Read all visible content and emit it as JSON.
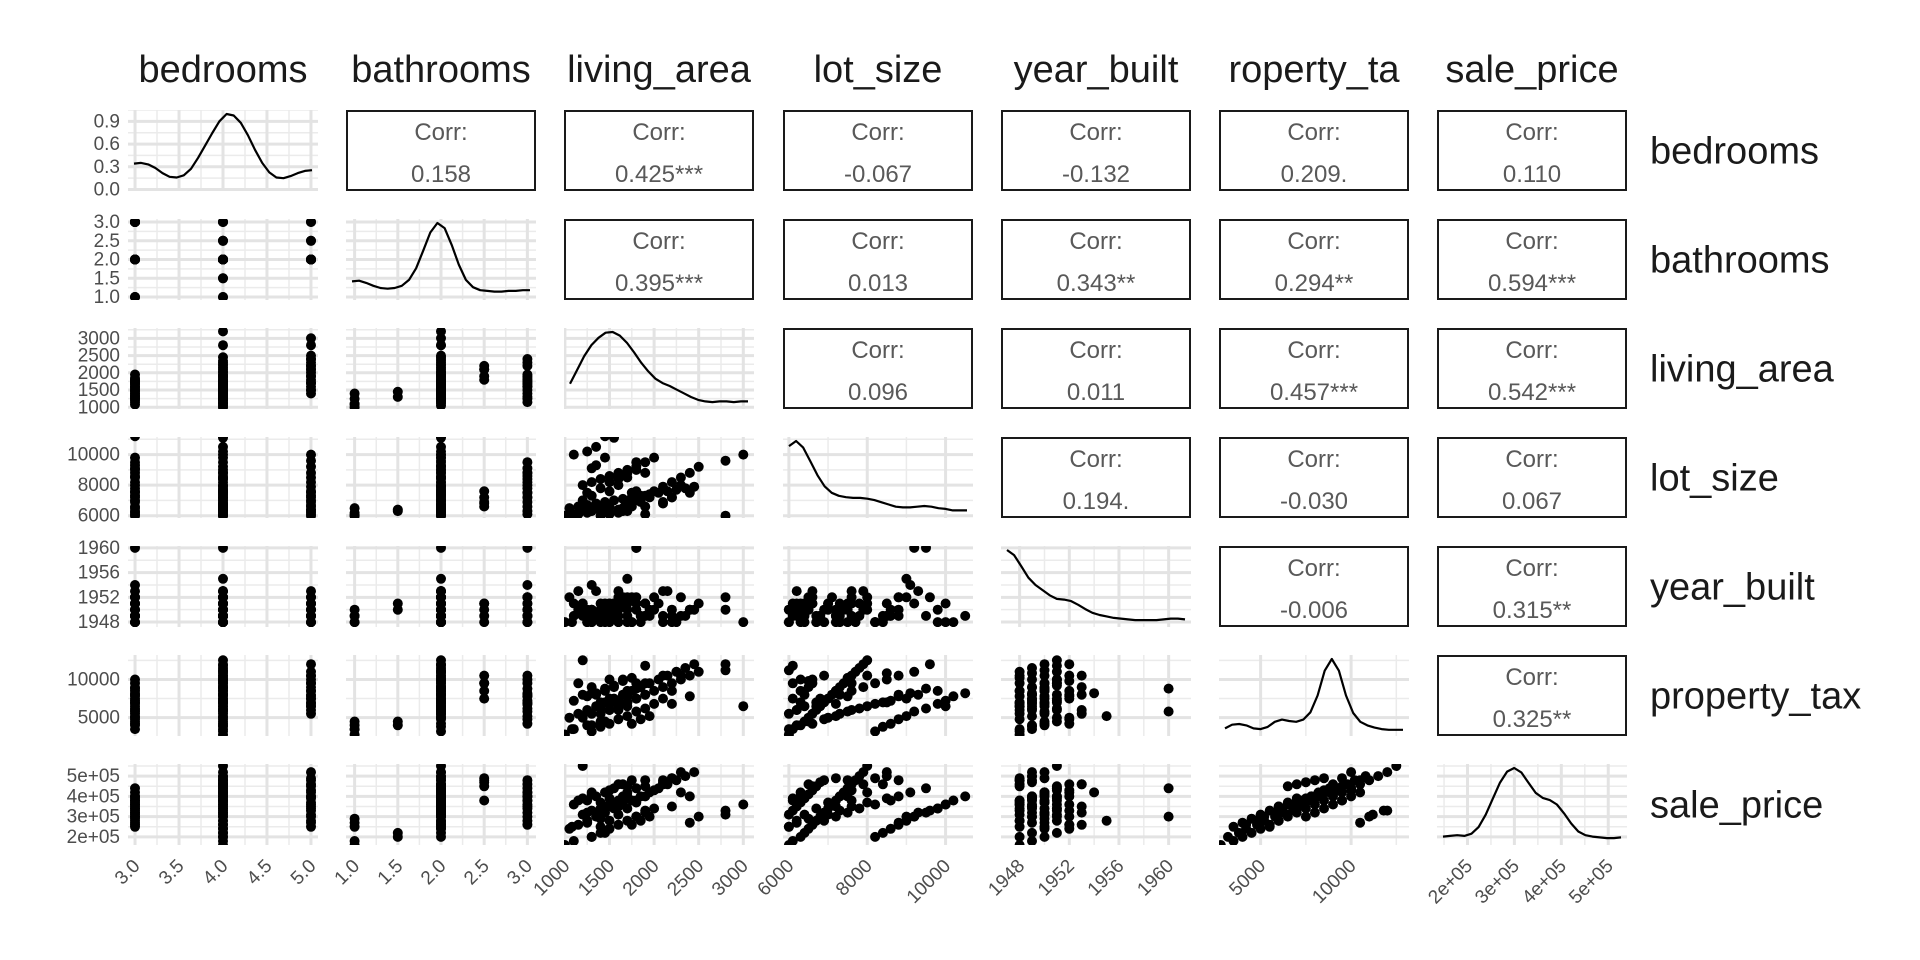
{
  "chart_data": {
    "type": "scatter-matrix",
    "variables": [
      "bedrooms",
      "bathrooms",
      "living_area",
      "lot_size",
      "year_built",
      "property_tax",
      "sale_price"
    ],
    "column_strip_labels": [
      "bedrooms",
      "bathrooms",
      "living_area",
      "lot_size",
      "year_built",
      "roperty_ta",
      "sale_price"
    ],
    "row_strip_labels": [
      "bedrooms",
      "bathrooms",
      "living_area",
      "lot_size",
      "year_built",
      "property_tax",
      "sale_price"
    ],
    "corr_label": "Corr:",
    "correlations": [
      [
        "",
        "0.158",
        "0.425***",
        "-0.067",
        "-0.132",
        "0.209.",
        "0.110"
      ],
      [
        "",
        "",
        "0.395***",
        "0.013",
        "0.343**",
        "0.294**",
        "0.594***"
      ],
      [
        "",
        "",
        "",
        "0.096",
        "0.011",
        "0.457***",
        "0.542***"
      ],
      [
        "",
        "",
        "",
        "",
        "0.194.",
        "-0.030",
        "0.067"
      ],
      [
        "",
        "",
        "",
        "",
        "",
        "-0.006",
        "0.315**"
      ],
      [
        "",
        "",
        "",
        "",
        "",
        "",
        "0.325**"
      ]
    ],
    "x_axes": [
      {
        "range": [
          2.92,
          5.08
        ],
        "ticks": [
          3.0,
          3.5,
          4.0,
          4.5,
          5.0
        ],
        "labels": [
          "3.0",
          "3.5",
          "4.0",
          "4.5",
          "5.0"
        ]
      },
      {
        "range": [
          0.9,
          3.1
        ],
        "ticks": [
          1.0,
          1.5,
          2.0,
          2.5,
          3.0
        ],
        "labels": [
          "1.0",
          "1.5",
          "2.0",
          "2.5",
          "3.0"
        ]
      },
      {
        "range": [
          990,
          3120
        ],
        "ticks": [
          1000,
          1500,
          2000,
          2500,
          3000
        ],
        "labels": [
          "1000",
          "1500",
          "2000",
          "2500",
          "3000"
        ]
      },
      {
        "range": [
          5850,
          10700
        ],
        "ticks": [
          6000,
          8000,
          10000
        ],
        "labels": [
          "6000",
          "8000",
          "10000"
        ]
      },
      {
        "range": [
          1946.5,
          1961.8
        ],
        "ticks": [
          1948,
          1952,
          1956,
          1960
        ],
        "labels": [
          "1948",
          "1952",
          "1956",
          "1960"
        ]
      },
      {
        "range": [
          2700,
          13200
        ],
        "ticks": [
          5000,
          10000
        ],
        "labels": [
          "5000",
          "10000"
        ]
      },
      {
        "range": [
          135000,
          540000
        ],
        "ticks": [
          200000,
          300000,
          400000,
          500000
        ],
        "labels": [
          "2e+05",
          "3e+05",
          "4e+05",
          "5e+05"
        ]
      }
    ],
    "y_axes": [
      {
        "range": [
          -0.02,
          1.05
        ],
        "ticks": [
          0.0,
          0.3,
          0.6,
          0.9
        ],
        "labels": [
          "0.0",
          "0.3",
          "0.6",
          "0.9"
        ]
      },
      {
        "range": [
          0.92,
          3.08
        ],
        "ticks": [
          1.0,
          1.5,
          2.0,
          2.5,
          3.0
        ],
        "labels": [
          "1.0",
          "1.5",
          "2.0",
          "2.5",
          "3.0"
        ]
      },
      {
        "range": [
          950,
          3300
        ],
        "ticks": [
          1000,
          1500,
          2000,
          2500,
          3000
        ],
        "labels": [
          "1000",
          "1500",
          "2000",
          "2500",
          "3000"
        ]
      },
      {
        "range": [
          5850,
          11150
        ],
        "ticks": [
          6000,
          8000,
          10000
        ],
        "labels": [
          "6000",
          "8000",
          "10000"
        ]
      },
      {
        "range": [
          1947.2,
          1960.3
        ],
        "ticks": [
          1948,
          1952,
          1956,
          1960
        ],
        "labels": [
          "1948",
          "1952",
          "1956",
          "1960"
        ]
      },
      {
        "range": [
          2600,
          13200
        ],
        "ticks": [
          5000,
          10000
        ],
        "labels": [
          "5000",
          "10000"
        ]
      },
      {
        "range": [
          160000,
          560000
        ],
        "ticks": [
          200000,
          300000,
          400000,
          500000
        ],
        "labels": [
          "2e+05",
          "3e+05",
          "4e+05",
          "5e+05"
        ]
      }
    ],
    "densities": [
      [
        0.32,
        0.33,
        0.31,
        0.26,
        0.19,
        0.14,
        0.13,
        0.16,
        0.25,
        0.4,
        0.57,
        0.74,
        0.9,
        1.0,
        0.98,
        0.88,
        0.71,
        0.51,
        0.33,
        0.2,
        0.13,
        0.12,
        0.15,
        0.19,
        0.22,
        0.23
      ],
      [
        0.2,
        0.21,
        0.18,
        0.14,
        0.11,
        0.1,
        0.11,
        0.14,
        0.22,
        0.38,
        0.62,
        0.87,
        1.0,
        0.93,
        0.7,
        0.43,
        0.22,
        0.12,
        0.08,
        0.07,
        0.06,
        0.06,
        0.07,
        0.07,
        0.08,
        0.08
      ],
      [
        0.29,
        0.48,
        0.67,
        0.82,
        0.92,
        0.99,
        1.0,
        0.95,
        0.85,
        0.72,
        0.58,
        0.46,
        0.36,
        0.3,
        0.26,
        0.21,
        0.16,
        0.11,
        0.07,
        0.05,
        0.04,
        0.05,
        0.05,
        0.04,
        0.05,
        0.05
      ],
      [
        0.93,
        1.0,
        0.91,
        0.72,
        0.53,
        0.38,
        0.29,
        0.25,
        0.23,
        0.22,
        0.22,
        0.21,
        0.19,
        0.16,
        0.13,
        0.1,
        0.09,
        0.09,
        0.1,
        0.11,
        0.1,
        0.08,
        0.07,
        0.05,
        0.05,
        0.05
      ],
      [
        1.0,
        0.93,
        0.78,
        0.62,
        0.52,
        0.45,
        0.38,
        0.33,
        0.32,
        0.3,
        0.25,
        0.19,
        0.14,
        0.11,
        0.09,
        0.07,
        0.06,
        0.05,
        0.04,
        0.04,
        0.04,
        0.04,
        0.05,
        0.06,
        0.06,
        0.05
      ],
      [
        0.05,
        0.1,
        0.11,
        0.09,
        0.05,
        0.04,
        0.07,
        0.14,
        0.17,
        0.15,
        0.14,
        0.17,
        0.27,
        0.5,
        0.84,
        1.0,
        0.84,
        0.5,
        0.26,
        0.14,
        0.09,
        0.06,
        0.04,
        0.03,
        0.03,
        0.03
      ],
      [
        0.06,
        0.07,
        0.08,
        0.07,
        0.1,
        0.19,
        0.36,
        0.58,
        0.8,
        0.95,
        1.0,
        0.94,
        0.8,
        0.66,
        0.59,
        0.56,
        0.5,
        0.38,
        0.24,
        0.13,
        0.08,
        0.06,
        0.05,
        0.04,
        0.04,
        0.05
      ]
    ],
    "bedrooms": [
      3,
      3,
      3,
      3,
      3,
      3,
      3,
      3,
      3,
      3,
      3,
      3,
      3,
      3,
      3,
      3,
      3,
      3,
      3,
      3,
      3,
      3,
      3,
      3,
      4,
      4,
      4,
      4,
      4,
      4,
      4,
      4,
      4,
      4,
      4,
      4,
      4,
      4,
      4,
      4,
      4,
      4,
      4,
      4,
      4,
      4,
      4,
      4,
      4,
      4,
      4,
      4,
      4,
      4,
      4,
      4,
      4,
      4,
      4,
      4,
      4,
      4,
      4,
      4,
      4,
      4,
      4,
      4,
      4,
      4,
      4,
      4,
      4,
      4,
      5,
      5,
      5,
      5,
      5,
      5,
      5,
      5,
      5,
      5,
      5,
      5,
      5,
      5,
      5,
      5,
      5,
      5,
      5,
      5
    ],
    "bathrooms": [
      1.0,
      1.0,
      1.0,
      2.0,
      2.0,
      2.0,
      2.0,
      2.0,
      2.0,
      2.0,
      2.0,
      2.0,
      3.0,
      3.0,
      3.0,
      3.0,
      3.0,
      3.0,
      3.0,
      3.0,
      3.0,
      3.0,
      3.0,
      3.0,
      1.0,
      1.0,
      1.5,
      1.5,
      2.0,
      2.0,
      2.0,
      2.0,
      2.0,
      2.0,
      2.0,
      2.0,
      2.0,
      2.0,
      2.0,
      2.0,
      2.0,
      2.0,
      2.0,
      2.0,
      2.0,
      2.0,
      2.0,
      2.0,
      2.0,
      2.0,
      2.0,
      2.0,
      2.0,
      2.0,
      2.0,
      2.0,
      2.0,
      2.0,
      2.0,
      2.0,
      2.0,
      2.0,
      2.0,
      2.0,
      2.0,
      2.0,
      2.0,
      2.0,
      2.5,
      2.5,
      2.5,
      3.0,
      3.0,
      3.0,
      2.0,
      2.0,
      2.0,
      2.0,
      2.0,
      2.0,
      2.0,
      2.0,
      2.0,
      2.0,
      2.0,
      2.0,
      2.0,
      2.0,
      2.0,
      2.0,
      2.5,
      2.5,
      3.0,
      3.0
    ],
    "living_area": [
      1080,
      1250,
      1400,
      1200,
      1300,
      1500,
      1600,
      1700,
      1800,
      1350,
      1450,
      1550,
      1150,
      1650,
      1750,
      1850,
      1950,
      1250,
      1400,
      1500,
      1600,
      1700,
      1300,
      1800,
      1000,
      1100,
      1300,
      1450,
      1050,
      1150,
      1250,
      1350,
      1450,
      1550,
      1650,
      1750,
      1850,
      1950,
      2050,
      2150,
      2250,
      2350,
      2450,
      1200,
      1300,
      1400,
      1500,
      1600,
      1700,
      1800,
      1900,
      2000,
      1100,
      1250,
      1350,
      1450,
      1550,
      1650,
      1750,
      3200,
      2800,
      1900,
      1600,
      1400,
      1200,
      1300,
      1500,
      1700,
      2100,
      2200,
      1800,
      2300,
      1600,
      1900,
      1400,
      1500,
      1600,
      1700,
      1800,
      1900,
      2000,
      2100,
      2200,
      2300,
      2400,
      2500,
      2800,
      3000,
      1500,
      1700,
      1900,
      2100,
      2200,
      2400
    ],
    "lot_size": [
      6000,
      6200,
      6500,
      7000,
      7300,
      7600,
      8000,
      8500,
      9000,
      9300,
      9800,
      11200,
      6100,
      6300,
      6600,
      6900,
      7200,
      7500,
      7800,
      8200,
      8600,
      8800,
      9100,
      9500,
      6000,
      6100,
      6300,
      6400,
      6500,
      6600,
      6700,
      6800,
      6900,
      7000,
      7100,
      7200,
      7300,
      7400,
      7500,
      7600,
      7700,
      7800,
      7900,
      8000,
      8200,
      8400,
      8600,
      8800,
      9000,
      9200,
      9500,
      9800,
      10000,
      10200,
      10500,
      11200,
      11100,
      6500,
      7500,
      8500,
      6000,
      6100,
      6200,
      6300,
      6400,
      6500,
      6600,
      6700,
      6800,
      7200,
      7600,
      8000,
      8400,
      8800,
      6000,
      6200,
      6400,
      6700,
      7000,
      7300,
      7600,
      7900,
      8200,
      8500,
      8800,
      9200,
      9600,
      10000,
      6100,
      6300,
      6600,
      6900,
      7200,
      7500
    ],
    "year_built": [
      1948,
      1949,
      1950,
      1951,
      1948,
      1949,
      1950,
      1951,
      1952,
      1953,
      1948,
      1949,
      1950,
      1951,
      1952,
      1948,
      1949,
      1950,
      1951,
      1948,
      1949,
      1952,
      1954,
      1960,
      1948,
      1949,
      1950,
      1951,
      1952,
      1953,
      1948,
      1949,
      1950,
      1951,
      1952,
      1948,
      1949,
      1950,
      1951,
      1953,
      1948,
      1949,
      1950,
      1951,
      1948,
      1949,
      1950,
      1952,
      1955,
      1960,
      1949,
      1950,
      1951,
      1948,
      1949,
      1950,
      1951,
      1952,
      1948,
      1949,
      1950,
      1951,
      1953,
      1948,
      1949,
      1950,
      1951,
      1948,
      1949,
      1950,
      1951,
      1952,
      1948,
      1949,
      1950,
      1951,
      1948,
      1949,
      1950,
      1951,
      1952,
      1953,
      1948,
      1949,
      1950,
      1951,
      1952,
      1948,
      1949,
      1950,
      1951,
      1948,
      1949,
      1950
    ],
    "property_tax": [
      3500,
      4000,
      4500,
      5000,
      5500,
      6000,
      6500,
      7000,
      7500,
      8000,
      8500,
      9000,
      9500,
      10000,
      4200,
      4800,
      5200,
      5800,
      6200,
      6800,
      7200,
      7800,
      8200,
      8800,
      2800,
      3500,
      4000,
      4500,
      5000,
      5500,
      6000,
      6500,
      7000,
      7500,
      8000,
      8500,
      9000,
      9500,
      10000,
      10500,
      11000,
      11500,
      12000,
      12500,
      3200,
      3800,
      4200,
      4800,
      5200,
      5800,
      6200,
      6800,
      7200,
      7800,
      8200,
      8800,
      9200,
      9800,
      10200,
      10800,
      11200,
      11800,
      6000,
      7000,
      8000,
      9000,
      10000,
      6500,
      7500,
      8500,
      9500,
      10500,
      7000,
      8000,
      5500,
      6000,
      6500,
      7000,
      7500,
      8000,
      8500,
      9000,
      9500,
      10000,
      10500,
      11000,
      12000,
      6500,
      7500,
      8500,
      9500,
      10500,
      6800,
      7800
    ],
    "sale_price": [
      250000,
      270000,
      290000,
      310000,
      330000,
      350000,
      370000,
      390000,
      300000,
      320000,
      340000,
      360000,
      380000,
      400000,
      260000,
      280000,
      300000,
      320000,
      340000,
      360000,
      380000,
      400000,
      420000,
      440000,
      160000,
      180000,
      200000,
      220000,
      240000,
      260000,
      280000,
      300000,
      320000,
      340000,
      360000,
      380000,
      400000,
      420000,
      440000,
      460000,
      480000,
      500000,
      520000,
      550000,
      200000,
      220000,
      240000,
      260000,
      280000,
      300000,
      320000,
      340000,
      360000,
      380000,
      400000,
      420000,
      440000,
      460000,
      480000,
      500000,
      310000,
      330000,
      350000,
      370000,
      390000,
      410000,
      430000,
      450000,
      470000,
      490000,
      380000,
      420000,
      460000,
      480000,
      250000,
      280000,
      310000,
      340000,
      370000,
      400000,
      430000,
      460000,
      490000,
      520000,
      270000,
      300000,
      330000,
      360000,
      390000,
      420000,
      450000,
      480000,
      350000,
      400000
    ]
  }
}
